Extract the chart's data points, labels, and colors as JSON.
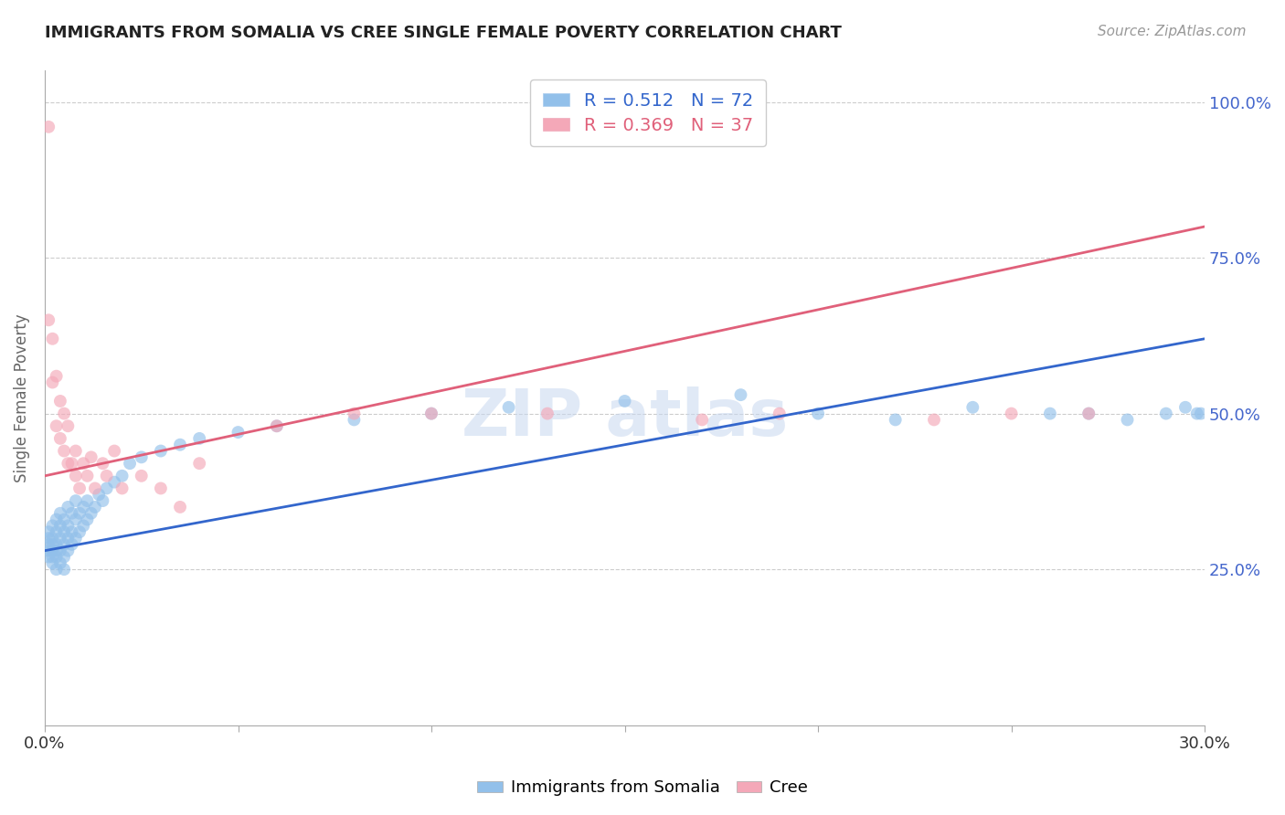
{
  "title": "IMMIGRANTS FROM SOMALIA VS CREE SINGLE FEMALE POVERTY CORRELATION CHART",
  "source_text": "Source: ZipAtlas.com",
  "ylabel": "Single Female Poverty",
  "xlim": [
    0.0,
    0.3
  ],
  "ylim": [
    0.0,
    1.05
  ],
  "xticks": [
    0.0,
    0.05,
    0.1,
    0.15,
    0.2,
    0.25,
    0.3
  ],
  "xticklabels": [
    "0.0%",
    "",
    "",
    "",
    "",
    "",
    "30.0%"
  ],
  "yticks": [
    0.0,
    0.25,
    0.5,
    0.75,
    1.0
  ],
  "yticklabels": [
    "",
    "25.0%",
    "50.0%",
    "75.0%",
    "100.0%"
  ],
  "blue_R": 0.512,
  "blue_N": 72,
  "pink_R": 0.369,
  "pink_N": 37,
  "blue_color": "#92c0ea",
  "pink_color": "#f4a8b8",
  "blue_line_color": "#3366cc",
  "pink_line_color": "#e0607a",
  "legend_blue_label": "Immigrants from Somalia",
  "legend_pink_label": "Cree",
  "blue_line_x0": 0.0,
  "blue_line_y0": 0.28,
  "blue_line_x1": 0.3,
  "blue_line_y1": 0.62,
  "pink_line_x0": 0.0,
  "pink_line_y0": 0.4,
  "pink_line_x1": 0.3,
  "pink_line_y1": 0.8,
  "blue_scatter_x": [
    0.001,
    0.001,
    0.001,
    0.001,
    0.001,
    0.002,
    0.002,
    0.002,
    0.002,
    0.002,
    0.002,
    0.003,
    0.003,
    0.003,
    0.003,
    0.003,
    0.003,
    0.004,
    0.004,
    0.004,
    0.004,
    0.004,
    0.005,
    0.005,
    0.005,
    0.005,
    0.005,
    0.006,
    0.006,
    0.006,
    0.006,
    0.007,
    0.007,
    0.007,
    0.008,
    0.008,
    0.008,
    0.009,
    0.009,
    0.01,
    0.01,
    0.011,
    0.011,
    0.012,
    0.013,
    0.014,
    0.015,
    0.016,
    0.018,
    0.02,
    0.022,
    0.025,
    0.03,
    0.035,
    0.04,
    0.05,
    0.06,
    0.08,
    0.1,
    0.12,
    0.15,
    0.18,
    0.2,
    0.22,
    0.24,
    0.26,
    0.27,
    0.28,
    0.29,
    0.295,
    0.298,
    0.299
  ],
  "blue_scatter_y": [
    0.28,
    0.29,
    0.3,
    0.27,
    0.31,
    0.27,
    0.28,
    0.29,
    0.3,
    0.26,
    0.32,
    0.25,
    0.27,
    0.28,
    0.29,
    0.31,
    0.33,
    0.26,
    0.28,
    0.3,
    0.32,
    0.34,
    0.25,
    0.27,
    0.29,
    0.31,
    0.33,
    0.28,
    0.3,
    0.32,
    0.35,
    0.29,
    0.31,
    0.34,
    0.3,
    0.33,
    0.36,
    0.31,
    0.34,
    0.32,
    0.35,
    0.33,
    0.36,
    0.34,
    0.35,
    0.37,
    0.36,
    0.38,
    0.39,
    0.4,
    0.42,
    0.43,
    0.44,
    0.45,
    0.46,
    0.47,
    0.48,
    0.49,
    0.5,
    0.51,
    0.52,
    0.53,
    0.5,
    0.49,
    0.51,
    0.5,
    0.5,
    0.49,
    0.5,
    0.51,
    0.5,
    0.5
  ],
  "pink_scatter_x": [
    0.001,
    0.001,
    0.002,
    0.002,
    0.003,
    0.003,
    0.004,
    0.004,
    0.005,
    0.005,
    0.006,
    0.006,
    0.007,
    0.008,
    0.008,
    0.009,
    0.01,
    0.011,
    0.012,
    0.013,
    0.015,
    0.016,
    0.018,
    0.02,
    0.025,
    0.03,
    0.035,
    0.04,
    0.06,
    0.08,
    0.1,
    0.13,
    0.17,
    0.19,
    0.23,
    0.25,
    0.27
  ],
  "pink_scatter_y": [
    0.96,
    0.65,
    0.62,
    0.55,
    0.56,
    0.48,
    0.52,
    0.46,
    0.44,
    0.5,
    0.42,
    0.48,
    0.42,
    0.4,
    0.44,
    0.38,
    0.42,
    0.4,
    0.43,
    0.38,
    0.42,
    0.4,
    0.44,
    0.38,
    0.4,
    0.38,
    0.35,
    0.42,
    0.48,
    0.5,
    0.5,
    0.5,
    0.49,
    0.5,
    0.49,
    0.5,
    0.5
  ]
}
